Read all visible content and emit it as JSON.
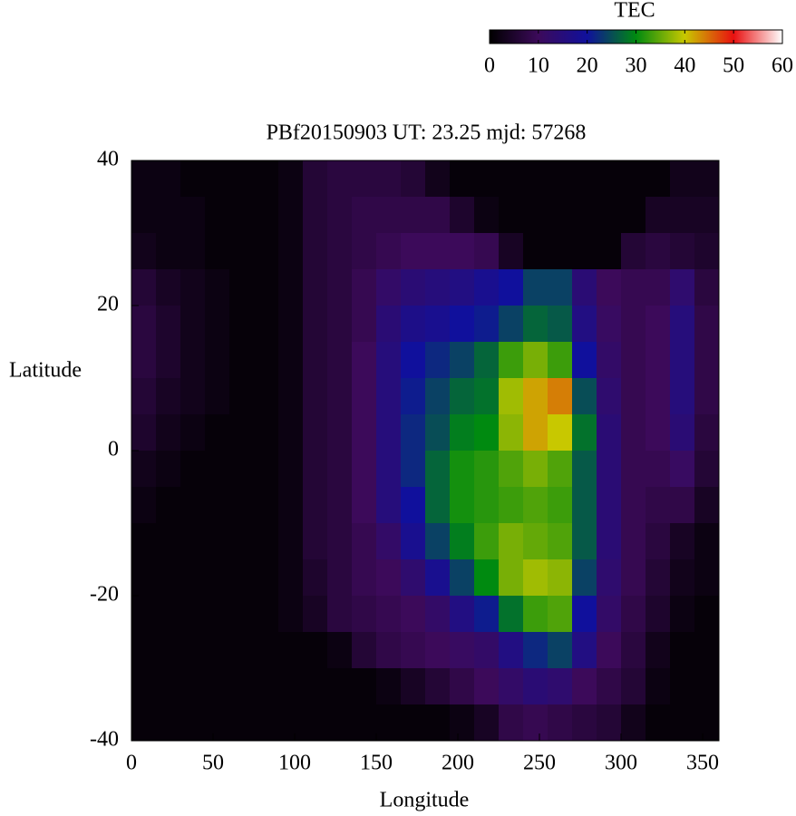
{
  "chart_data": {
    "type": "heatmap",
    "title": "PBf20150903  UT: 23.25  mjd: 57268",
    "x_label": "Longitude",
    "y_label": "Latitude",
    "colorbar_label": "TEC",
    "xlim": [
      0,
      360
    ],
    "ylim": [
      -40,
      40
    ],
    "xticks": [
      0,
      50,
      100,
      150,
      200,
      250,
      300,
      350
    ],
    "yticks": [
      -40,
      -20,
      0,
      20,
      40
    ],
    "zlim": [
      0,
      60
    ],
    "zticks": [
      0,
      10,
      20,
      30,
      40,
      50,
      60
    ],
    "colorscale": [
      "#000000",
      "#3c0a5a",
      "#10109c",
      "#008a10",
      "#c8c800",
      "#e81010",
      "#ffffff"
    ],
    "x": [
      7.5,
      22.5,
      37.5,
      52.5,
      67.5,
      82.5,
      97.5,
      112.5,
      127.5,
      142.5,
      157.5,
      172.5,
      187.5,
      202.5,
      217.5,
      232.5,
      247.5,
      262.5,
      277.5,
      292.5,
      307.5,
      322.5,
      337.5,
      352.5
    ],
    "y": [
      37.5,
      32.5,
      27.5,
      22.5,
      17.5,
      12.5,
      7.5,
      2.5,
      -2.5,
      -7.5,
      -12.5,
      -17.5,
      -22.5,
      -27.5,
      -32.5,
      -37.5
    ],
    "z": [
      [
        2,
        2,
        1,
        1,
        1,
        1,
        2,
        6,
        7,
        7,
        7,
        6,
        3,
        1,
        1,
        1,
        1,
        1,
        1,
        1,
        1,
        1,
        3,
        3
      ],
      [
        2,
        2,
        2,
        1,
        1,
        1,
        2,
        6,
        7,
        8,
        8,
        8,
        8,
        5,
        2,
        1,
        1,
        1,
        1,
        1,
        1,
        4,
        4,
        4
      ],
      [
        3,
        2,
        2,
        1,
        1,
        1,
        2,
        6,
        7,
        8,
        9,
        10,
        10,
        10,
        9,
        4,
        1,
        1,
        1,
        1,
        6,
        7,
        6,
        5
      ],
      [
        6,
        4,
        3,
        2,
        1,
        1,
        2,
        6,
        7,
        9,
        12,
        14,
        15,
        16,
        18,
        20,
        24,
        24,
        14,
        10,
        9,
        9,
        13,
        7
      ],
      [
        7,
        5,
        3,
        2,
        1,
        1,
        2,
        6,
        7,
        9,
        14,
        17,
        18,
        20,
        21,
        24,
        27,
        26,
        16,
        11,
        9,
        10,
        15,
        8
      ],
      [
        7,
        5,
        3,
        2,
        1,
        1,
        2,
        6,
        7,
        10,
        15,
        20,
        22,
        24,
        27,
        33,
        36,
        33,
        20,
        12,
        9,
        10,
        15,
        8
      ],
      [
        6,
        4,
        3,
        2,
        1,
        1,
        2,
        6,
        7,
        10,
        15,
        21,
        24,
        27,
        28,
        38,
        42,
        44,
        25,
        13,
        9,
        10,
        15,
        8
      ],
      [
        5,
        3,
        2,
        1,
        1,
        1,
        2,
        6,
        7,
        10,
        15,
        22,
        25,
        29,
        30,
        37,
        42,
        40,
        28,
        14,
        9,
        10,
        14,
        7
      ],
      [
        3,
        2,
        1,
        1,
        1,
        1,
        2,
        6,
        7,
        10,
        15,
        22,
        27,
        31,
        32,
        34,
        36,
        34,
        26,
        14,
        9,
        9,
        11,
        6
      ],
      [
        2,
        1,
        1,
        1,
        1,
        1,
        2,
        6,
        7,
        10,
        15,
        20,
        27,
        31,
        32,
        33,
        34,
        33,
        26,
        14,
        9,
        8,
        8,
        4
      ],
      [
        1,
        1,
        1,
        1,
        1,
        1,
        2,
        6,
        7,
        9,
        12,
        18,
        24,
        29,
        33,
        36,
        35,
        34,
        26,
        14,
        9,
        7,
        4,
        2
      ],
      [
        1,
        1,
        1,
        1,
        1,
        1,
        2,
        5,
        7,
        9,
        10,
        13,
        18,
        24,
        30,
        36,
        38,
        37,
        24,
        13,
        9,
        6,
        3,
        2
      ],
      [
        1,
        1,
        1,
        1,
        1,
        1,
        2,
        4,
        7,
        8,
        9,
        10,
        12,
        16,
        21,
        28,
        33,
        34,
        20,
        12,
        8,
        5,
        2,
        1
      ],
      [
        1,
        1,
        1,
        1,
        1,
        1,
        1,
        1,
        2,
        6,
        8,
        9,
        10,
        11,
        12,
        16,
        22,
        24,
        16,
        10,
        7,
        3,
        1,
        1
      ],
      [
        1,
        1,
        1,
        1,
        1,
        1,
        1,
        1,
        1,
        1,
        2,
        4,
        6,
        8,
        10,
        12,
        14,
        13,
        10,
        8,
        6,
        2,
        1,
        1
      ],
      [
        1,
        1,
        1,
        1,
        1,
        1,
        1,
        1,
        1,
        1,
        1,
        1,
        1,
        2,
        4,
        8,
        9,
        8,
        7,
        6,
        3,
        1,
        1,
        1
      ]
    ]
  }
}
